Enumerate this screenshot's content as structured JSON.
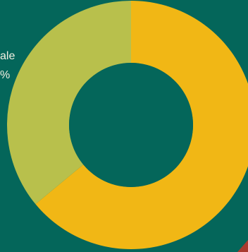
{
  "colors": {
    "background": "#04665a",
    "hole": "#04665a",
    "text": "#f3f0e2",
    "accent_corner": "#a83a2f"
  },
  "chart_data": {
    "type": "pie",
    "style": "donut",
    "slices": [
      {
        "label": "ale",
        "value": 64,
        "color": "#f1b715"
      },
      {
        "label": "ale",
        "value": 36,
        "color": "#b8c04c"
      }
    ],
    "visible_labels": [
      {
        "text": "ale"
      },
      {
        "text": "%"
      }
    ],
    "start_angle_deg": 0,
    "direction": "clockwise",
    "legend": "left, cropped"
  }
}
